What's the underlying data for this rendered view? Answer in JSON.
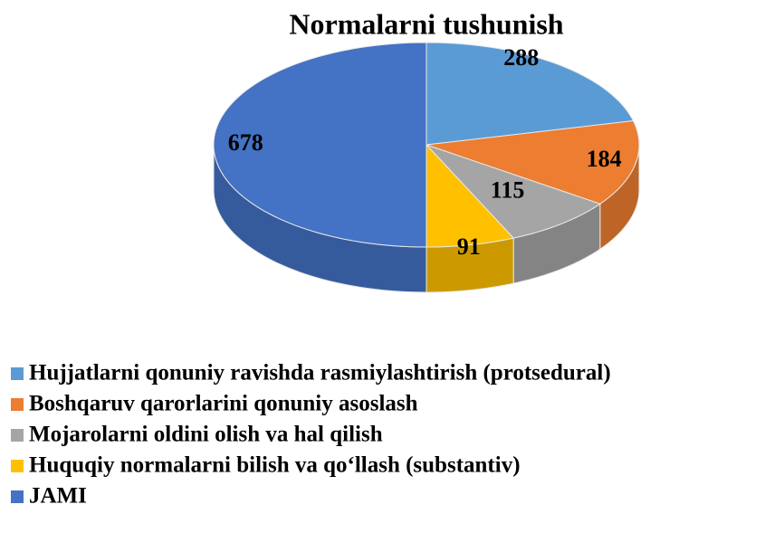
{
  "chart_data": {
    "type": "pie",
    "title": "Normalarni tushunish",
    "categories": [
      "Hujjatlarni qonuniy ravishda rasmiylashtirish (protsedural)",
      "Boshqaruv qarorlarini qonuniy asoslash",
      "Mojarolarni oldini olish va hal qilish",
      "Huquqiy normalarni bilish va qo‘llash (substantiv)",
      "JAMI"
    ],
    "values": [
      288,
      184,
      115,
      91,
      678
    ],
    "colors": [
      "#5b9bd5",
      "#ed7d31",
      "#a5a5a5",
      "#ffc000",
      "#4472c4"
    ],
    "legend": "bottom"
  }
}
